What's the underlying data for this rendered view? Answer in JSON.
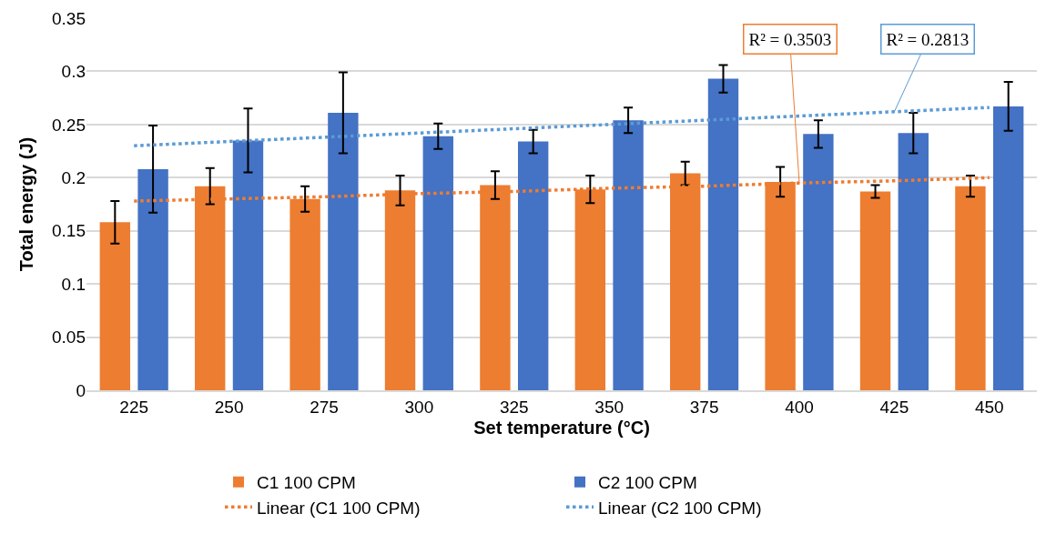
{
  "chart_data": {
    "type": "bar",
    "xlabel": "Set temperature (°C)",
    "ylabel": "Total energy (J)",
    "categories": [
      "225",
      "250",
      "275",
      "300",
      "325",
      "350",
      "375",
      "400",
      "425",
      "450"
    ],
    "series": [
      {
        "name": "C1 100 CPM",
        "color": "#ed7d31",
        "values": [
          0.158,
          0.192,
          0.18,
          0.188,
          0.193,
          0.189,
          0.204,
          0.196,
          0.187,
          0.192
        ],
        "errors": [
          0.02,
          0.017,
          0.012,
          0.014,
          0.013,
          0.013,
          0.011,
          0.014,
          0.006,
          0.01
        ]
      },
      {
        "name": "C2 100 CPM",
        "color": "#4472c4",
        "values": [
          0.208,
          0.235,
          0.261,
          0.239,
          0.234,
          0.254,
          0.293,
          0.241,
          0.242,
          0.267
        ],
        "errors": [
          0.041,
          0.03,
          0.038,
          0.012,
          0.011,
          0.012,
          0.013,
          0.013,
          0.019,
          0.023
        ]
      },
      {
        "name": "Linear (C1 100 CPM)",
        "type": "line",
        "color": "#ed7d31",
        "line_style": "dotted",
        "values": [
          0.178,
          0.18,
          0.182,
          0.185,
          0.187,
          0.19,
          0.192,
          0.195,
          0.197,
          0.2
        ]
      },
      {
        "name": "Linear (C2 100 CPM)",
        "type": "line",
        "color": "#5b9bd5",
        "line_style": "dotted",
        "values": [
          0.23,
          0.234,
          0.238,
          0.242,
          0.246,
          0.25,
          0.254,
          0.258,
          0.262,
          0.266
        ]
      }
    ],
    "ylim": [
      0,
      0.35
    ],
    "yticks": [
      0,
      0.05,
      0.1,
      0.15,
      0.2,
      0.25,
      0.3,
      0.35
    ],
    "grid": "y",
    "legend": "bottom",
    "marker": "none",
    "annotations": [
      {
        "text": "R² = 0.3503",
        "x": "400",
        "y": 0.195
      },
      {
        "text": "R² = 0.2813",
        "x": "425",
        "y": 0.262
      }
    ]
  }
}
